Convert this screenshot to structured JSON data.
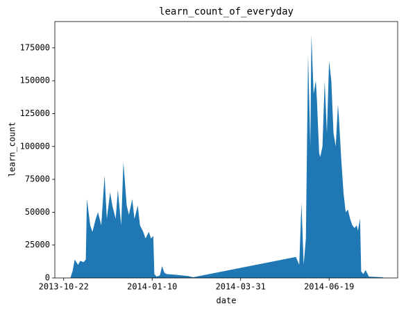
{
  "chart_data": {
    "type": "area",
    "title": "learn_count_of_everyday",
    "x_label": "date",
    "y_label": "learn_count",
    "color": "#1f77b4",
    "x": [
      "2013-10-28",
      "2013-10-30",
      "2013-11-01",
      "2013-11-04",
      "2013-11-06",
      "2013-11-09",
      "2013-11-11",
      "2013-11-12",
      "2013-11-15",
      "2013-11-17",
      "2013-11-20",
      "2013-11-22",
      "2013-11-25",
      "2013-11-28",
      "2013-11-30",
      "2013-12-03",
      "2013-12-05",
      "2013-12-08",
      "2013-12-10",
      "2013-12-13",
      "2013-12-15",
      "2013-12-18",
      "2013-12-20",
      "2013-12-23",
      "2013-12-25",
      "2013-12-28",
      "2013-12-30",
      "2014-01-02",
      "2014-01-04",
      "2014-01-07",
      "2014-01-09",
      "2014-01-11",
      "2014-01-12",
      "2014-01-14",
      "2014-01-17",
      "2014-01-19",
      "2014-01-21",
      "2014-01-23",
      "2014-01-30",
      "2014-02-05",
      "2014-02-11",
      "2014-02-16",
      "2014-05-20",
      "2014-05-22",
      "2014-05-23",
      "2014-05-25",
      "2014-05-27",
      "2014-05-29",
      "2014-05-31",
      "2014-06-02",
      "2014-06-03",
      "2014-06-05",
      "2014-06-07",
      "2014-06-08",
      "2014-06-10",
      "2014-06-11",
      "2014-06-13",
      "2014-06-15",
      "2014-06-17",
      "2014-06-19",
      "2014-06-21",
      "2014-06-23",
      "2014-06-25",
      "2014-06-27",
      "2014-06-28",
      "2014-06-30",
      "2014-07-02",
      "2014-07-04",
      "2014-07-06",
      "2014-07-08",
      "2014-07-10",
      "2014-07-12",
      "2014-07-14",
      "2014-07-15",
      "2014-07-17",
      "2014-07-18",
      "2014-07-20",
      "2014-07-22",
      "2014-07-25",
      "2014-07-31",
      "2014-08-06",
      "2014-08-08"
    ],
    "values": [
      0,
      5000,
      14000,
      10000,
      13000,
      12000,
      14000,
      60000,
      40000,
      35000,
      45000,
      50000,
      40000,
      78000,
      45000,
      65000,
      55000,
      45000,
      67000,
      40000,
      88000,
      55000,
      48000,
      60000,
      45000,
      55000,
      40000,
      35000,
      30000,
      35000,
      30000,
      32000,
      3000,
      1000,
      2000,
      9000,
      4000,
      3000,
      2500,
      2000,
      1500,
      500,
      16000,
      12000,
      10000,
      57000,
      10000,
      30000,
      170000,
      100000,
      185000,
      140000,
      150000,
      135000,
      95000,
      92000,
      100000,
      150000,
      110000,
      165000,
      150000,
      110000,
      100000,
      132000,
      120000,
      90000,
      65000,
      50000,
      52000,
      45000,
      40000,
      38000,
      40000,
      36000,
      45000,
      5000,
      3000,
      6000,
      1000,
      800,
      500,
      0
    ],
    "xlim": [
      "2013-10-14",
      "2014-08-20"
    ],
    "xticks": [
      "2013-10-22",
      "2014-01-10",
      "2014-03-31",
      "2014-06-19"
    ],
    "ylim": [
      0,
      195000
    ],
    "yticks": [
      0,
      25000,
      50000,
      75000,
      100000,
      125000,
      150000,
      175000
    ]
  }
}
